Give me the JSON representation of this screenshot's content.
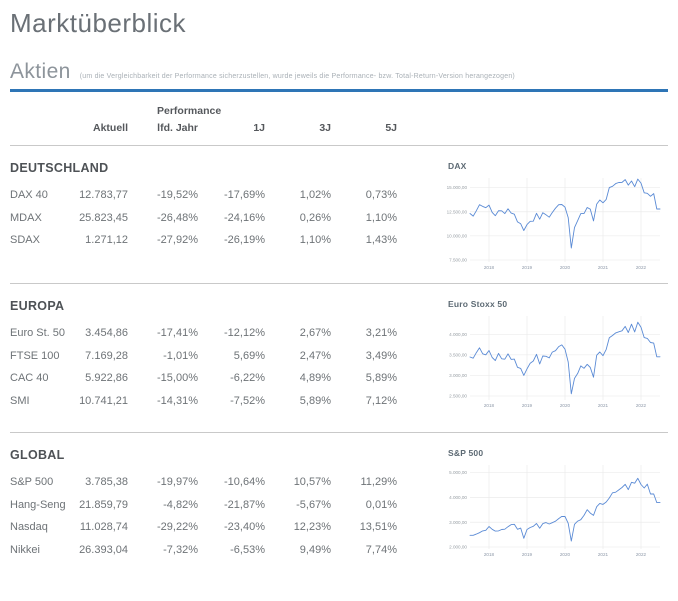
{
  "page": {
    "title": "Marktüberblick"
  },
  "aktien": {
    "title": "Aktien",
    "note": "(um die Vergleichbarkeit der Performance sicherzustellen, wurde jeweils die Performance- bzw. Total-Return-Version herangezogen)"
  },
  "table": {
    "group_header": "Performance",
    "columns": [
      "Aktuell",
      "lfd. Jahr",
      "1J",
      "3J",
      "5J"
    ],
    "sections": [
      {
        "name": "DEUTSCHLAND",
        "rows": [
          [
            "DAX 40",
            "12.783,77",
            "-19,52%",
            "-17,69%",
            "1,02%",
            "0,73%"
          ],
          [
            "MDAX",
            "25.823,45",
            "-26,48%",
            "-24,16%",
            "0,26%",
            "1,10%"
          ],
          [
            "SDAX",
            "1.271,12",
            "-27,92%",
            "-26,19%",
            "1,10%",
            "1,43%"
          ]
        ]
      },
      {
        "name": "EUROPA",
        "rows": [
          [
            "Euro St. 50",
            "3.454,86",
            "-17,41%",
            "-12,12%",
            "2,67%",
            "3,21%"
          ],
          [
            "FTSE 100",
            "7.169,28",
            "-1,01%",
            "5,69%",
            "2,47%",
            "3,49%"
          ],
          [
            "CAC 40",
            "5.922,86",
            "-15,00%",
            "-6,22%",
            "4,89%",
            "5,89%"
          ],
          [
            "SMI",
            "10.741,21",
            "-14,31%",
            "-7,52%",
            "5,89%",
            "7,12%"
          ]
        ]
      },
      {
        "name": "GLOBAL",
        "rows": [
          [
            "S&P 500",
            "3.785,38",
            "-19,97%",
            "-10,64%",
            "10,57%",
            "11,29%"
          ],
          [
            "Hang-Seng",
            "21.859,79",
            "-4,82%",
            "-21,87%",
            "-5,67%",
            "0,01%"
          ],
          [
            "Nasdaq",
            "11.028,74",
            "-29,22%",
            "-23,40%",
            "12,23%",
            "13,51%"
          ],
          [
            "Nikkei",
            "26.393,04",
            "-7,32%",
            "-6,53%",
            "9,49%",
            "7,74%"
          ]
        ]
      }
    ]
  },
  "colors": {
    "accent_blue": "#2e75b6",
    "chart_line": "#5b8bd5",
    "divider_gray": "#c9c9c9"
  },
  "chart_data": [
    {
      "type": "line",
      "title": "DAX",
      "x_years": [
        "2018",
        "2019",
        "2020",
        "2021",
        "2022"
      ],
      "x_range": [
        2017.5,
        2022.5
      ],
      "ylim": [
        7500,
        16000
      ],
      "grid": true,
      "yticks": [
        {
          "value": 15000,
          "label": "15.000,00"
        },
        {
          "value": 12500,
          "label": "12.500,00"
        },
        {
          "value": 10000,
          "label": "10.000,00"
        },
        {
          "value": 7500,
          "label": "7.500,00"
        }
      ],
      "values": [
        12325,
        12055,
        12595,
        13230,
        13060,
        12918,
        13190,
        12436,
        12097,
        12612,
        12605,
        12306,
        12806,
        12364,
        12247,
        11448,
        11257,
        10559,
        11173,
        11516,
        11526,
        12344,
        11727,
        12399,
        12189,
        11939,
        12428,
        12867,
        13236,
        13249,
        12982,
        11890,
        8742,
        10862,
        11587,
        12311,
        12313,
        12945,
        12761,
        11556,
        13291,
        13719,
        13433,
        13786,
        15008,
        15136,
        15421,
        15531,
        15544,
        15835,
        15261,
        15689,
        15100,
        15885,
        15471,
        14461,
        14415,
        14098,
        14388,
        12784,
        12783
      ]
    },
    {
      "type": "line",
      "title": "Euro Stoxx 50",
      "x_years": [
        "2018",
        "2019",
        "2020",
        "2021",
        "2022"
      ],
      "x_range": [
        2017.5,
        2022.5
      ],
      "ylim": [
        2450,
        4450
      ],
      "grid": true,
      "yticks": [
        {
          "value": 4000,
          "label": "4.000,00"
        },
        {
          "value": 3500,
          "label": "3.500,00"
        },
        {
          "value": 3000,
          "label": "3.000,00"
        },
        {
          "value": 2500,
          "label": "2.500,00"
        }
      ],
      "values": [
        3450,
        3421,
        3555,
        3674,
        3527,
        3504,
        3609,
        3439,
        3362,
        3537,
        3407,
        3396,
        3525,
        3392,
        3399,
        3198,
        3173,
        3001,
        3159,
        3298,
        3352,
        3515,
        3280,
        3474,
        3467,
        3427,
        3569,
        3604,
        3704,
        3745,
        3641,
        3329,
        2552,
        2928,
        3050,
        3234,
        3174,
        3273,
        3193,
        2958,
        3493,
        3571,
        3481,
        3636,
        3919,
        3975,
        4039,
        4064,
        4089,
        4196,
        4048,
        4251,
        4063,
        4298,
        4175,
        3924,
        3903,
        3803,
        3789,
        3455,
        3455
      ]
    },
    {
      "type": "line",
      "title": "S&P 500",
      "x_years": [
        "2018",
        "2019",
        "2020",
        "2021",
        "2022"
      ],
      "x_range": [
        2017.5,
        2022.5
      ],
      "ylim": [
        2000,
        5300
      ],
      "grid": true,
      "yticks": [
        {
          "value": 5000,
          "label": "5.000,00"
        },
        {
          "value": 4000,
          "label": "4.000,00"
        },
        {
          "value": 3000,
          "label": "3.000,00"
        },
        {
          "value": 2000,
          "label": "2.000,00"
        }
      ],
      "values": [
        2470,
        2472,
        2519,
        2575,
        2648,
        2674,
        2824,
        2714,
        2641,
        2648,
        2705,
        2718,
        2816,
        2902,
        2914,
        2712,
        2760,
        2351,
        2704,
        2784,
        2834,
        2946,
        2752,
        2942,
        2980,
        2926,
        2977,
        3038,
        3141,
        3231,
        3226,
        2954,
        2237,
        2912,
        3044,
        3100,
        3271,
        3500,
        3363,
        3270,
        3622,
        3756,
        3714,
        3811,
        3973,
        4181,
        4204,
        4298,
        4395,
        4523,
        4308,
        4605,
        4567,
        4766,
        4516,
        4374,
        4530,
        4132,
        4132,
        3785,
        3785
      ]
    }
  ]
}
